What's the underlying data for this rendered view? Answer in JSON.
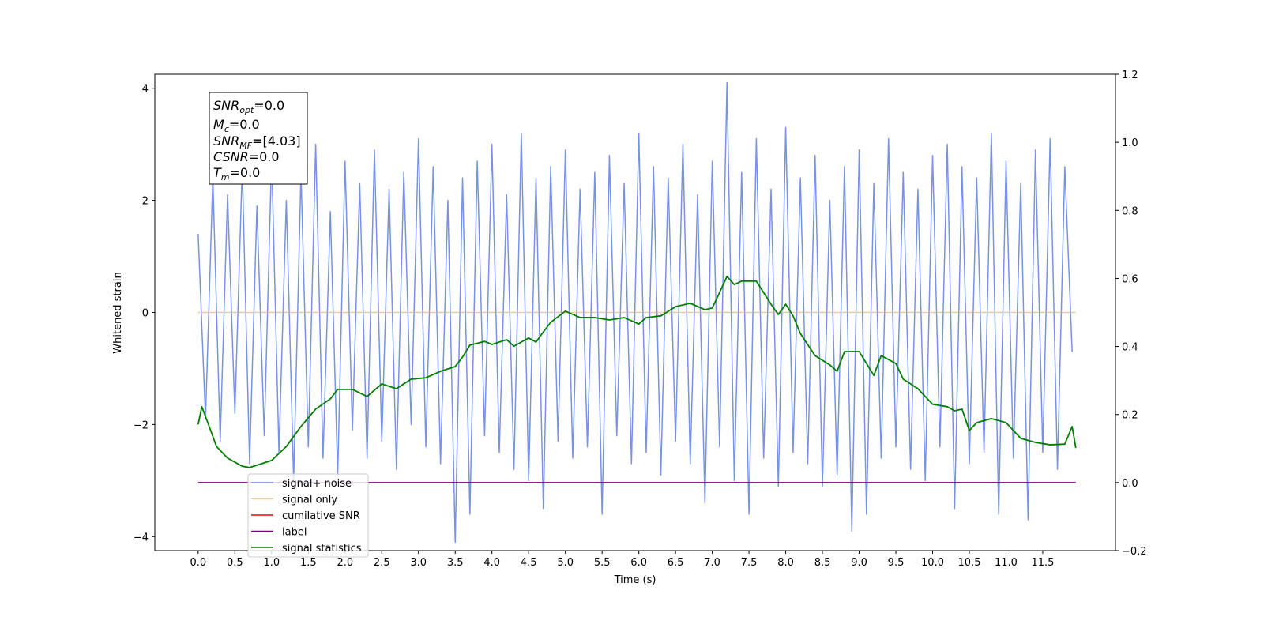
{
  "chart_data": {
    "type": "line",
    "ylabel": "Whitened strain",
    "xlabel": "Time (s)",
    "xlim": [
      -0.59,
      12.49
    ],
    "ylim": [
      -4.25,
      4.25
    ],
    "y2lim": [
      -0.2,
      1.2
    ],
    "xticks": [
      {
        "value": 0,
        "label": "0.0"
      },
      0.5,
      {
        "value": 1,
        "label": "1.0"
      },
      1.5,
      {
        "value": 2,
        "label": "2.0"
      },
      2.5,
      {
        "value": 3,
        "label": "3.0"
      },
      3.5,
      {
        "value": 4,
        "label": "4.0"
      },
      4.5,
      {
        "value": 5,
        "label": "5.0"
      },
      5.5,
      {
        "value": 6,
        "label": "6.0"
      },
      6.5,
      {
        "value": 7,
        "label": "7.0"
      },
      7.5,
      {
        "value": 8,
        "label": "8.0"
      },
      8.5,
      {
        "value": 9,
        "label": "9.0"
      },
      9.5,
      {
        "value": 10,
        "label": "10.0"
      },
      10.5,
      {
        "value": 11,
        "label": "11.0"
      },
      11.5
    ],
    "yticks": [
      {
        "value": -4,
        "label": "−4"
      },
      {
        "value": -2,
        "label": "−2"
      },
      0,
      2,
      4
    ],
    "y2ticks": [
      {
        "value": -0.2,
        "label": "−0.2"
      },
      {
        "value": 0,
        "label": "0.0"
      },
      0.2,
      0.4,
      0.6,
      0.8,
      {
        "value": 1,
        "label": "1.0"
      },
      1.2
    ],
    "legend": "lower left",
    "annotation": [
      [
        {
          "text": "SNR",
          "style": "italic"
        },
        {
          "text": "opt",
          "style": "sub"
        },
        {
          "text": "=0.0",
          "style": "plain"
        }
      ],
      [
        {
          "text": "M",
          "style": "italic"
        },
        {
          "text": "c",
          "style": "sub"
        },
        {
          "text": "=0.0",
          "style": "plain"
        }
      ],
      [
        {
          "text": "SNR",
          "style": "italic"
        },
        {
          "text": "MF",
          "style": "sub"
        },
        {
          "text": "=[4.03]",
          "style": "plain"
        }
      ],
      [
        {
          "text": "CSNR",
          "style": "italic"
        },
        {
          "text": "=0.0",
          "style": "plain"
        }
      ],
      [
        {
          "text": "T",
          "style": "italic"
        },
        {
          "text": "m",
          "style": "sub"
        },
        {
          "text": "=0.0",
          "style": "plain"
        }
      ]
    ],
    "series": [
      {
        "name": "signal+ noise",
        "color": "#7893e6",
        "axis": "y",
        "x": [
          0.0,
          0.1,
          0.2,
          0.3,
          0.4,
          0.5,
          0.6,
          0.7,
          0.8,
          0.9,
          1.0,
          1.1,
          1.2,
          1.3,
          1.4,
          1.5,
          1.6,
          1.7,
          1.8,
          1.9,
          2.0,
          2.1,
          2.2,
          2.3,
          2.4,
          2.5,
          2.6,
          2.7,
          2.8,
          2.9,
          3.0,
          3.1,
          3.2,
          3.3,
          3.4,
          3.5,
          3.6,
          3.7,
          3.8,
          3.9,
          4.0,
          4.1,
          4.2,
          4.3,
          4.4,
          4.5,
          4.6,
          4.7,
          4.8,
          4.9,
          5.0,
          5.1,
          5.2,
          5.3,
          5.4,
          5.5,
          5.6,
          5.7,
          5.8,
          5.9,
          6.0,
          6.1,
          6.2,
          6.3,
          6.4,
          6.5,
          6.6,
          6.7,
          6.8,
          6.9,
          7.0,
          7.1,
          7.2,
          7.3,
          7.4,
          7.5,
          7.6,
          7.7,
          7.8,
          7.9,
          8.0,
          8.1,
          8.2,
          8.3,
          8.4,
          8.5,
          8.6,
          8.7,
          8.8,
          8.9,
          9.0,
          9.1,
          9.2,
          9.3,
          9.4,
          9.5,
          9.6,
          9.7,
          9.8,
          9.9,
          10.0,
          10.1,
          10.2,
          10.3,
          10.4,
          10.5,
          10.6,
          10.7,
          10.8,
          10.9,
          11.0,
          11.1,
          11.2,
          11.3,
          11.4,
          11.5,
          11.6,
          11.7,
          11.8,
          11.9
        ],
        "values": [
          1.4,
          -1.9,
          2.4,
          -2.3,
          2.1,
          -1.8,
          2.6,
          -2.7,
          1.9,
          -2.2,
          2.8,
          -2.5,
          2.0,
          -3.0,
          2.5,
          -2.4,
          3.0,
          -2.6,
          1.8,
          -2.9,
          2.7,
          -2.1,
          2.3,
          -2.6,
          2.9,
          -2.3,
          2.2,
          -2.8,
          2.5,
          -2.0,
          3.1,
          -2.4,
          2.6,
          -2.7,
          2.0,
          -4.1,
          2.4,
          -3.6,
          2.7,
          -2.2,
          3.0,
          -2.5,
          2.1,
          -2.8,
          3.2,
          -3.0,
          2.4,
          -3.5,
          2.6,
          -2.3,
          2.9,
          -2.6,
          2.2,
          -2.4,
          2.5,
          -3.6,
          2.8,
          -2.2,
          2.3,
          -2.7,
          3.2,
          -2.5,
          2.6,
          -2.9,
          2.4,
          -2.3,
          3.0,
          -2.7,
          2.1,
          -3.4,
          2.7,
          -2.4,
          4.1,
          -3.0,
          2.5,
          -3.6,
          3.1,
          -2.6,
          2.2,
          -3.1,
          3.3,
          -2.5,
          2.4,
          -2.7,
          2.8,
          -3.1,
          2.0,
          -2.9,
          2.6,
          -3.9,
          2.9,
          -3.6,
          2.3,
          -2.6,
          3.1,
          -2.4,
          2.5,
          -2.8,
          2.2,
          -3.0,
          2.8,
          -2.4,
          3.0,
          -3.5,
          2.6,
          -2.7,
          2.4,
          -2.5,
          3.2,
          -3.6,
          2.7,
          -2.6,
          2.3,
          -3.7,
          2.9,
          -2.5,
          3.1,
          -2.8,
          2.6,
          -0.7
        ]
      },
      {
        "name": "signal only",
        "color": "#ffb347",
        "axis": "y",
        "x": [
          0,
          11.95
        ],
        "values": [
          0,
          0
        ]
      },
      {
        "name": "cumilative SNR",
        "color": "#ff0000",
        "axis": "y2",
        "x": [],
        "values": []
      },
      {
        "name": "label",
        "color": "#800080",
        "axis": "y2",
        "x": [
          0,
          11.95
        ],
        "values": [
          0,
          0
        ]
      },
      {
        "name": "signal statistics",
        "color": "#008000",
        "axis": "y2",
        "x": [
          0,
          0.05,
          0.15,
          0.25,
          0.4,
          0.6,
          0.7,
          0.8,
          1.0,
          1.2,
          1.4,
          1.6,
          1.8,
          1.9,
          2.1,
          2.3,
          2.5,
          2.7,
          2.9,
          3.1,
          3.3,
          3.5,
          3.6,
          3.7,
          3.9,
          4.0,
          4.2,
          4.3,
          4.5,
          4.6,
          4.7,
          4.8,
          5.0,
          5.2,
          5.4,
          5.6,
          5.8,
          6.0,
          6.1,
          6.3,
          6.5,
          6.7,
          6.9,
          7.0,
          7.1,
          7.2,
          7.3,
          7.4,
          7.6,
          7.8,
          7.9,
          8.0,
          8.1,
          8.2,
          8.4,
          8.6,
          8.7,
          8.8,
          9.0,
          9.1,
          9.2,
          9.3,
          9.5,
          9.6,
          9.8,
          10.0,
          10.2,
          10.3,
          10.4,
          10.5,
          10.6,
          10.8,
          11.0,
          11.2,
          11.4,
          11.6,
          11.8,
          11.9,
          11.95
        ],
        "values": [
          0.171,
          0.223,
          0.165,
          0.106,
          0.072,
          0.048,
          0.044,
          0.051,
          0.065,
          0.106,
          0.165,
          0.216,
          0.246,
          0.274,
          0.274,
          0.253,
          0.29,
          0.276,
          0.304,
          0.308,
          0.327,
          0.341,
          0.369,
          0.404,
          0.415,
          0.406,
          0.42,
          0.401,
          0.425,
          0.413,
          0.443,
          0.471,
          0.504,
          0.485,
          0.485,
          0.478,
          0.485,
          0.466,
          0.485,
          0.49,
          0.517,
          0.527,
          0.508,
          0.513,
          0.559,
          0.606,
          0.582,
          0.592,
          0.592,
          0.524,
          0.494,
          0.524,
          0.49,
          0.438,
          0.373,
          0.346,
          0.327,
          0.385,
          0.385,
          0.35,
          0.315,
          0.373,
          0.35,
          0.304,
          0.276,
          0.23,
          0.223,
          0.211,
          0.216,
          0.153,
          0.176,
          0.188,
          0.176,
          0.13,
          0.118,
          0.111,
          0.113,
          0.165,
          0.102
        ]
      }
    ]
  }
}
